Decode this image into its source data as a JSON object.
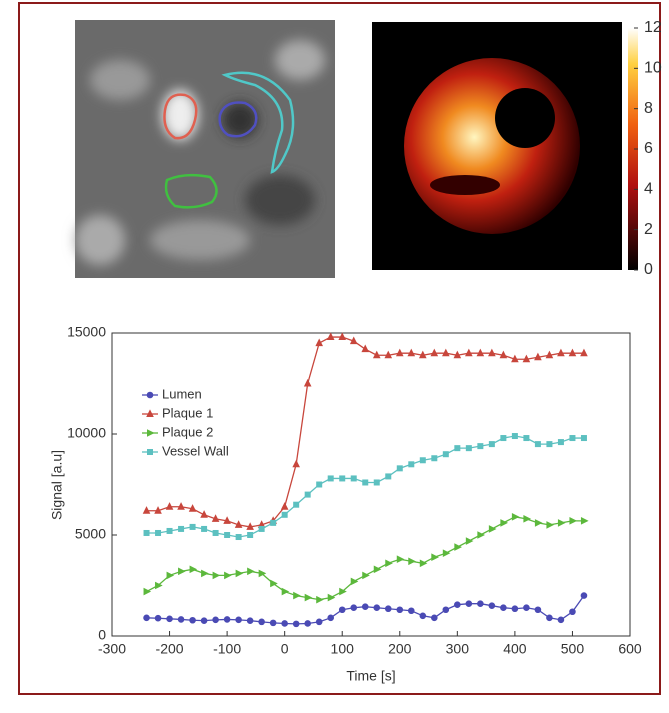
{
  "chart_data": {
    "type": "line",
    "xlabel": "Time [s]",
    "ylabel": "Signal [a.u]",
    "x": [
      -240,
      -220,
      -200,
      -180,
      -160,
      -140,
      -120,
      -100,
      -80,
      -60,
      -40,
      -20,
      0,
      20,
      40,
      60,
      80,
      100,
      120,
      140,
      160,
      180,
      200,
      220,
      240,
      260,
      280,
      300,
      320,
      340,
      360,
      380,
      400,
      420,
      440,
      460,
      480,
      500,
      520
    ],
    "xlim": [
      -300,
      600
    ],
    "xticks": [
      -300,
      -200,
      -100,
      0,
      100,
      200,
      300,
      400,
      500,
      600
    ],
    "ylim": [
      0,
      15000
    ],
    "yticks": [
      0,
      5000,
      10000,
      15000
    ],
    "legend": "upper left",
    "series": [
      {
        "name": "Lumen",
        "color": "#4a4ab4",
        "marker": "circle",
        "values": [
          900,
          880,
          850,
          820,
          780,
          760,
          800,
          820,
          800,
          760,
          700,
          650,
          620,
          600,
          620,
          700,
          900,
          1300,
          1400,
          1450,
          1400,
          1350,
          1300,
          1250,
          1000,
          900,
          1300,
          1550,
          1600,
          1600,
          1500,
          1400,
          1350,
          1400,
          1300,
          900,
          800,
          1200,
          2000
        ]
      },
      {
        "name": "Plaque 1",
        "color": "#c8463c",
        "marker": "triangle-up",
        "values": [
          6200,
          6200,
          6400,
          6400,
          6300,
          6000,
          5800,
          5700,
          5500,
          5400,
          5500,
          5700,
          6400,
          8500,
          12500,
          14500,
          14800,
          14800,
          14600,
          14200,
          13900,
          13900,
          14000,
          14000,
          13900,
          14000,
          14000,
          13900,
          14000,
          14000,
          14000,
          13900,
          13700,
          13700,
          13800,
          13900,
          14000,
          14000,
          14000
        ]
      },
      {
        "name": "Plaque 2",
        "color": "#5cb83c",
        "marker": "triangle-right",
        "values": [
          2200,
          2500,
          3000,
          3200,
          3300,
          3100,
          3000,
          3000,
          3100,
          3200,
          3100,
          2600,
          2200,
          2000,
          1900,
          1800,
          1900,
          2200,
          2700,
          3000,
          3300,
          3600,
          3800,
          3700,
          3600,
          3900,
          4100,
          4400,
          4700,
          5000,
          5300,
          5600,
          5900,
          5800,
          5600,
          5500,
          5600,
          5700,
          5700
        ]
      },
      {
        "name": "Vessel Wall",
        "color": "#5cc0c0",
        "marker": "square",
        "values": [
          5100,
          5100,
          5200,
          5300,
          5400,
          5300,
          5100,
          5000,
          4900,
          5000,
          5300,
          5600,
          6000,
          6500,
          7000,
          7500,
          7800,
          7800,
          7800,
          7600,
          7600,
          7900,
          8300,
          8500,
          8700,
          8800,
          9000,
          9300,
          9300,
          9400,
          9500,
          9800,
          9900,
          9800,
          9500,
          9500,
          9600,
          9800,
          9800
        ]
      }
    ]
  },
  "colorbar": {
    "lim": [
      0,
      12
    ],
    "ticks": [
      0,
      2,
      4,
      6,
      8,
      10,
      12
    ]
  }
}
